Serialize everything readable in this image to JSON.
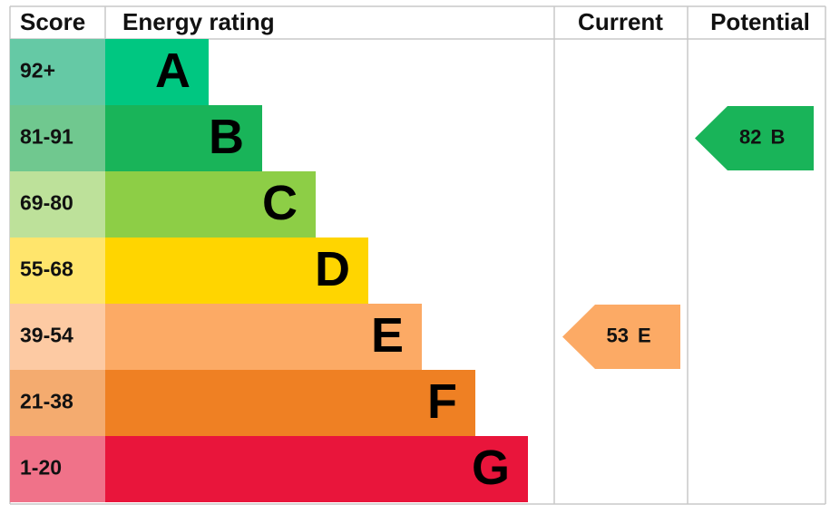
{
  "chart_data": {
    "type": "epc",
    "headers": {
      "score": "Score",
      "rating": "Energy rating",
      "current": "Current",
      "potential": "Potential"
    },
    "bands": [
      {
        "range": "92+",
        "letter": "A",
        "color": "#00c781",
        "score_color": "#65c9a5"
      },
      {
        "range": "81-91",
        "letter": "B",
        "color": "#19b459",
        "score_color": "#70c88f"
      },
      {
        "range": "69-80",
        "letter": "C",
        "color": "#8dce46",
        "score_color": "#bde19a"
      },
      {
        "range": "55-68",
        "letter": "D",
        "color": "#ffd500",
        "score_color": "#ffe56c"
      },
      {
        "range": "39-54",
        "letter": "E",
        "color": "#fcaa65",
        "score_color": "#fdcaa3"
      },
      {
        "range": "21-38",
        "letter": "F",
        "color": "#ef8023",
        "score_color": "#f4ab6f"
      },
      {
        "range": "1-20",
        "letter": "G",
        "color": "#e9153b",
        "score_color": "#f07289"
      }
    ],
    "current": {
      "value": 53,
      "band": "E"
    },
    "potential": {
      "value": 82,
      "band": "B"
    }
  }
}
